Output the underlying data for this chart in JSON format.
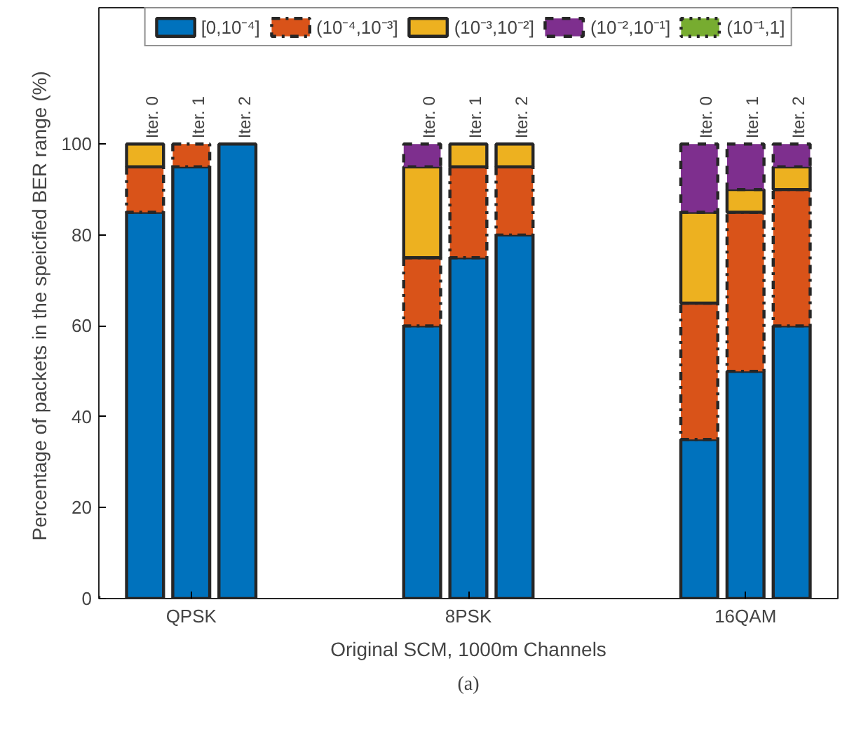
{
  "chart_data": {
    "type": "bar",
    "stacked": true,
    "xlabel": "Original SCM, 1000m Channels",
    "ylabel": "Percentage of  packets in the speicfied BER range (%)",
    "categories": [
      null,
      "QPSK",
      null,
      null,
      null,
      null,
      null,
      "8PSK",
      null,
      null,
      null,
      null,
      null,
      "16QAM",
      null
    ],
    "series": [
      {
        "name": "[0,10⁻⁴]",
        "color": "#0072bd",
        "line_style": "solid",
        "values": [
          85,
          95,
          100,
          0,
          0,
          0,
          60,
          75,
          80,
          0,
          0,
          0,
          35,
          50,
          60
        ]
      },
      {
        "name": "(10⁻⁴,10⁻³]",
        "color": "#d95319",
        "line_style": "dashdot",
        "values": [
          10,
          5,
          0,
          0,
          0,
          0,
          15,
          20,
          15,
          0,
          0,
          0,
          30,
          35,
          30
        ]
      },
      {
        "name": "(10⁻³,10⁻²]",
        "color": "#edb120",
        "line_style": "solid",
        "values": [
          5,
          0,
          0,
          0,
          0,
          0,
          20,
          5,
          5,
          0,
          0,
          0,
          20,
          5,
          5
        ]
      },
      {
        "name": "(10⁻²,10⁻¹]",
        "color": "#7e2f8e",
        "line_style": "dashed",
        "values": [
          0,
          0,
          0,
          0,
          0,
          0,
          5,
          0,
          0,
          0,
          0,
          0,
          15,
          10,
          5
        ]
      },
      {
        "name": "(10⁻¹,1]",
        "color": "#77ac30",
        "line_style": "dotted",
        "values": [
          0,
          0,
          0,
          0,
          0,
          0,
          0,
          0,
          0,
          0,
          0,
          0,
          0,
          0,
          0
        ]
      }
    ],
    "ylim": [
      0,
      130
    ],
    "yticks": [
      0,
      20,
      40,
      60,
      80,
      100
    ],
    "grid": false,
    "legend": "top",
    "annotations": [
      {
        "text": "Iter. 0",
        "y": 100
      },
      {
        "text": "Iter. 1",
        "y": 100
      },
      {
        "text": "Iter. 2",
        "y": 100
      },
      {
        "text": "Iter. 0",
        "y": 100
      },
      {
        "text": "Iter. 1",
        "y": 100
      },
      {
        "text": "Iter. 2",
        "y": 100
      },
      {
        "text": "Iter. 0",
        "y": 100
      },
      {
        "text": "Iter. 1",
        "y": 100
      },
      {
        "text": "Iter. 2",
        "y": 100
      },
      "(a)"
    ]
  }
}
